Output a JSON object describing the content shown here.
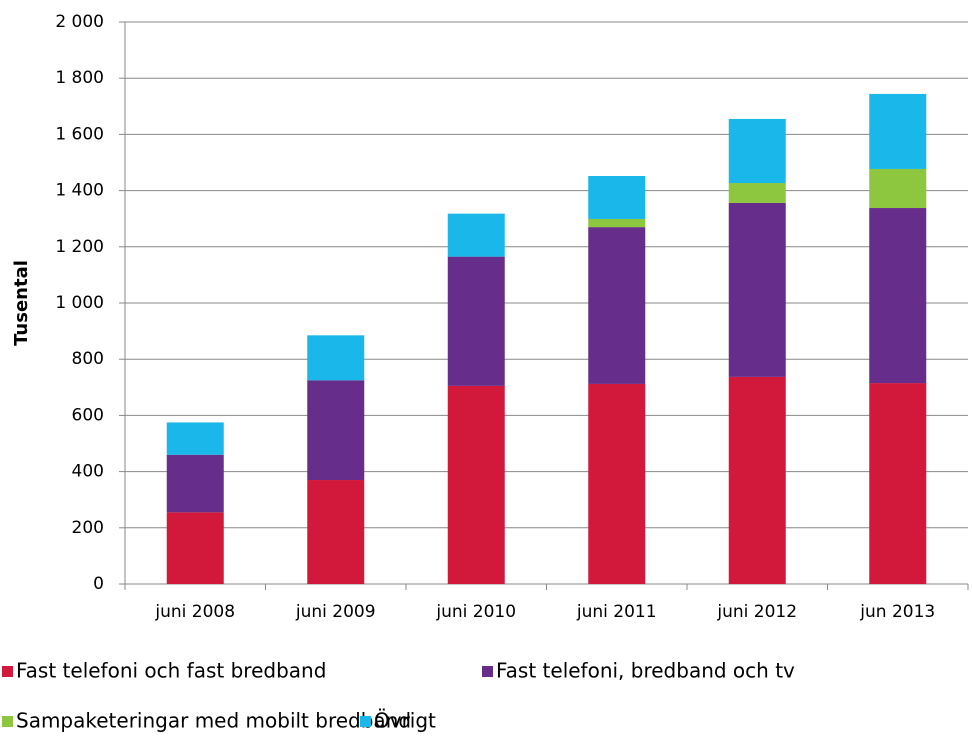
{
  "chart_data": {
    "type": "stacked_bar",
    "y_label": "Tusental",
    "categories": [
      "juni 2008",
      "juni 2009",
      "juni 2010",
      "juni 2011",
      "juni 2012",
      "jun 2013"
    ],
    "series": [
      {
        "name": "Fast telefoni och fast bredband",
        "color": "#d2193c",
        "values": [
          255,
          370,
          705,
          712,
          737,
          715
        ]
      },
      {
        "name": "Fast telefoni,  bredband och tv",
        "color": "#662d8a",
        "values": [
          205,
          355,
          460,
          558,
          619,
          623
        ]
      },
      {
        "name": "Sampaketeringar med mobilt bredband",
        "color": "#8dc63f",
        "values": [
          0,
          0,
          0,
          29,
          71,
          139
        ]
      },
      {
        "name": "Övrigt",
        "color": "#1ab7ea",
        "values": [
          115,
          160,
          153,
          153,
          228,
          267
        ]
      }
    ],
    "ylim": [
      0,
      2000
    ],
    "yticks": [
      0,
      200,
      400,
      600,
      800,
      {
        "value": 1000,
        "label": "1 000"
      },
      {
        "value": 1200,
        "label": "1 200"
      },
      {
        "value": 1400,
        "label": "1 400"
      },
      {
        "value": 1600,
        "label": "1 600"
      },
      {
        "value": 1800,
        "label": "1 800"
      },
      {
        "value": 2000,
        "label": "2 000"
      }
    ],
    "grid": true
  }
}
